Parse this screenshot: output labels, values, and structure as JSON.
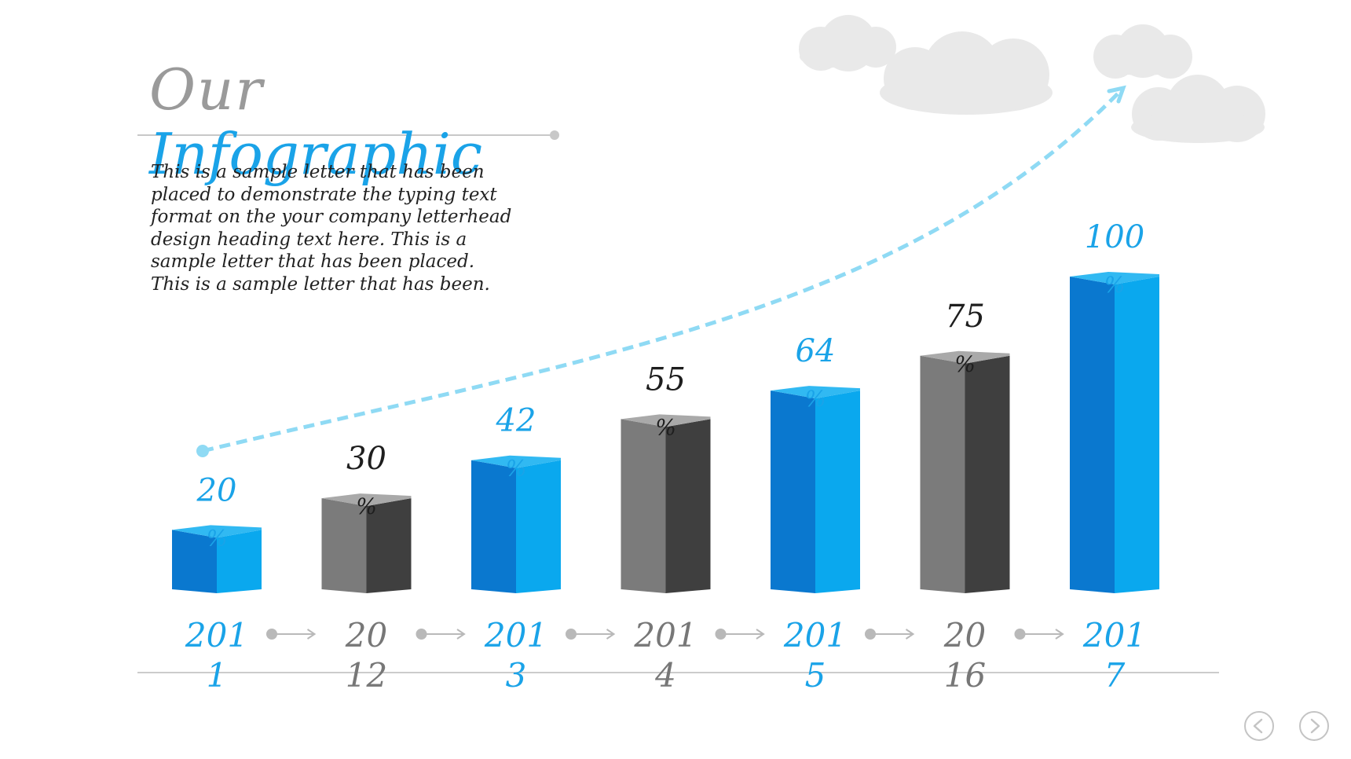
{
  "title": {
    "line1": "Our",
    "line2": "Infographic"
  },
  "body_text": "This is a sample letter that has been placed to demonstrate the typing text format on the your company letterhead design heading text here. This is a sample letter that has been placed. This is a sample letter that has been.",
  "colors": {
    "blue_front": "#0a78cf",
    "blue_side": "#0aa8ee",
    "blue_top": "#31b9f2",
    "gray_front": "#7b7b7b",
    "gray_side": "#3f3f3f",
    "gray_top": "#a9a9a9",
    "label_blue": "#1aa3e8",
    "label_dark": "#1e1e1e",
    "year_gray": "#777777",
    "trend_line": "#8fdaf4",
    "cloud": "#e9e9e9"
  },
  "icons": {
    "prev": "chevron-left-icon",
    "next": "chevron-right-icon"
  },
  "chart_data": {
    "type": "bar",
    "categories": [
      "2011",
      "2012",
      "2013",
      "2014",
      "2015",
      "2016",
      "2017"
    ],
    "values": [
      20,
      30,
      42,
      55,
      64,
      75,
      100
    ],
    "value_labels": [
      [
        "20",
        "%"
      ],
      [
        "30",
        "%"
      ],
      [
        "42",
        "%"
      ],
      [
        "55",
        "%"
      ],
      [
        "64",
        "%"
      ],
      [
        "75",
        "%"
      ],
      [
        "100",
        "%"
      ]
    ],
    "year_labels": [
      [
        "201",
        "1"
      ],
      [
        "20",
        "12"
      ],
      [
        "201",
        "3"
      ],
      [
        "201",
        "4"
      ],
      [
        "201",
        "5"
      ],
      [
        "20",
        "16"
      ],
      [
        "201",
        "7"
      ]
    ],
    "bar_styles": [
      "blue",
      "gray",
      "blue",
      "gray",
      "blue",
      "gray",
      "blue"
    ],
    "ylim": [
      0,
      100
    ],
    "title": "",
    "xlabel": "",
    "ylabel": "",
    "grid": false,
    "legend": "none",
    "trend_arrow": true
  }
}
